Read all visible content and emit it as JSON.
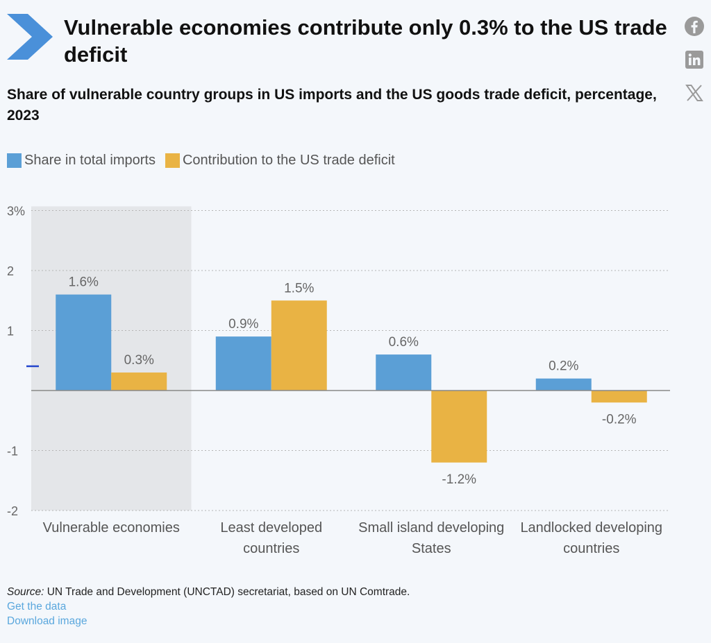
{
  "header": {
    "title": "Vulnerable economies contribute only 0.3% to the US trade deficit",
    "subtitle": "Share of vulnerable country groups in US imports and the US goods trade deficit, percentage, 2023"
  },
  "social": [
    {
      "name": "facebook-icon"
    },
    {
      "name": "linkedin-icon"
    },
    {
      "name": "x-icon"
    }
  ],
  "colors": {
    "imports": "#5b9fd6",
    "deficit": "#e9b344",
    "highlight": "#e4e6e9",
    "chevron": "#4a90d9",
    "link": "#5aa7dd"
  },
  "chart_data": {
    "type": "bar",
    "categories": [
      [
        "Vulnerable economies"
      ],
      [
        "Least developed",
        "countries"
      ],
      [
        "Small island developing",
        "States"
      ],
      [
        "Landlocked developing",
        "countries"
      ]
    ],
    "series": [
      {
        "name": "Share in total imports",
        "values": [
          1.6,
          0.9,
          0.6,
          0.2
        ],
        "labels": [
          "1.6%",
          "0.9%",
          "0.6%",
          "0.2%"
        ]
      },
      {
        "name": "Contribution to the US trade deficit",
        "values": [
          0.3,
          1.5,
          -1.2,
          -0.2
        ],
        "labels": [
          "0.3%",
          "1.5%",
          "-1.2%",
          "-0.2%"
        ]
      }
    ],
    "yticks": [
      {
        "value": 3,
        "label": "3%"
      },
      {
        "value": 2,
        "label": "2"
      },
      {
        "value": 1,
        "label": "1"
      },
      {
        "value": -1,
        "label": "-1"
      },
      {
        "value": -2,
        "label": "-2"
      }
    ],
    "ylim": [
      -2,
      3
    ],
    "highlighted_category": 0,
    "grid": true,
    "legend_position": "top-left"
  },
  "footer": {
    "source_label": "Source:",
    "source_text": " UN Trade and Development (UNCTAD) secretariat, based on UN Comtrade.",
    "get_data": "Get the data",
    "download": "Download image"
  }
}
